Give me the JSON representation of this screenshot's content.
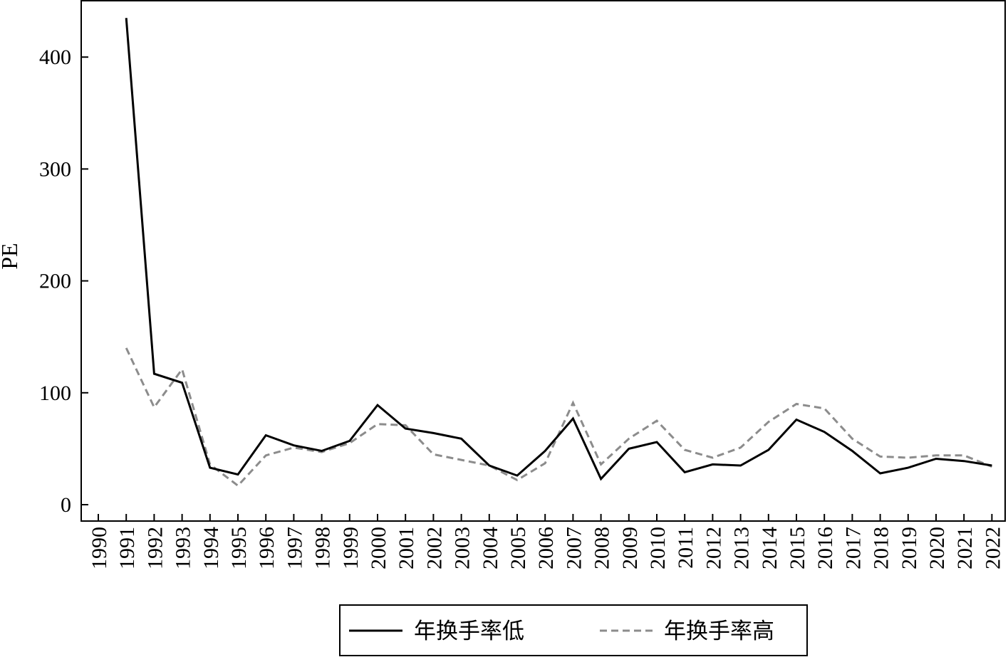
{
  "chart_data": {
    "type": "line",
    "title": "",
    "xlabel": "",
    "ylabel": "PE",
    "ylim": [
      -15,
      450
    ],
    "yticks": [
      0,
      100,
      200,
      300,
      400
    ],
    "x": [
      "1990",
      "1991",
      "1992",
      "1993",
      "1994",
      "1995",
      "1996",
      "1997",
      "1998",
      "1999",
      "2000",
      "2001",
      "2002",
      "2003",
      "2004",
      "2005",
      "2006",
      "2007",
      "2008",
      "2009",
      "2010",
      "2011",
      "2012",
      "2013",
      "2014",
      "2015",
      "2016",
      "2017",
      "2018",
      "2019",
      "2020",
      "2021",
      "2022"
    ],
    "series": [
      {
        "name": "年换手率低",
        "color": "#000000",
        "dash": "solid",
        "values": [
          null,
          435,
          117,
          109,
          33,
          27,
          62,
          53,
          48,
          57,
          89,
          68,
          64,
          59,
          35,
          26,
          48,
          77,
          23,
          50,
          56,
          29,
          36,
          35,
          49,
          76,
          65,
          48,
          28,
          33,
          41,
          39,
          35
        ]
      },
      {
        "name": "年换手率高",
        "color": "#8c8c8c",
        "dash": "dashed",
        "values": [
          null,
          140,
          87,
          121,
          36,
          17,
          44,
          51,
          47,
          55,
          72,
          71,
          45,
          40,
          35,
          22,
          37,
          91,
          36,
          59,
          75,
          49,
          42,
          51,
          74,
          90,
          86,
          59,
          43,
          42,
          44,
          44,
          34
        ]
      }
    ],
    "grid": false,
    "legend_position": "bottom-center"
  }
}
